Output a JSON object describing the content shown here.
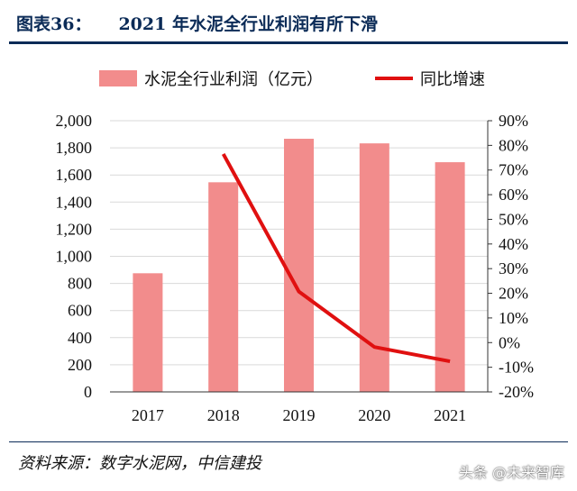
{
  "header": {
    "fig_label": "图表36：",
    "title": "2021 年水泥全行业利润有所下滑"
  },
  "chart_data": {
    "type": "bar",
    "categories": [
      "2017",
      "2018",
      "2019",
      "2020",
      "2021"
    ],
    "series": [
      {
        "name": "水泥全行业利润（亿元）",
        "type": "bar",
        "axis": "left",
        "color": "#f28c8c",
        "values": [
          875,
          1546,
          1867,
          1833,
          1694
        ]
      },
      {
        "name": "同比增速",
        "type": "line",
        "axis": "right",
        "color": "#e01010",
        "values": [
          null,
          76.5,
          20.7,
          -1.8,
          -7.6
        ]
      }
    ],
    "y_left": {
      "ylim": [
        0,
        2000
      ],
      "ticks": [
        "0",
        "200",
        "400",
        "600",
        "800",
        "1,000",
        "1,200",
        "1,400",
        "1,600",
        "1,800",
        "2,000"
      ]
    },
    "y_right": {
      "ylim": [
        -20,
        90
      ],
      "ticks": [
        "-20%",
        "-10%",
        "0%",
        "10%",
        "20%",
        "30%",
        "40%",
        "50%",
        "60%",
        "70%",
        "80%",
        "90%"
      ]
    },
    "grid": true,
    "legend_position": "top"
  },
  "footer": {
    "source": "资料来源：数字水泥网，中信建投",
    "watermark": "头条 @未来智库"
  }
}
